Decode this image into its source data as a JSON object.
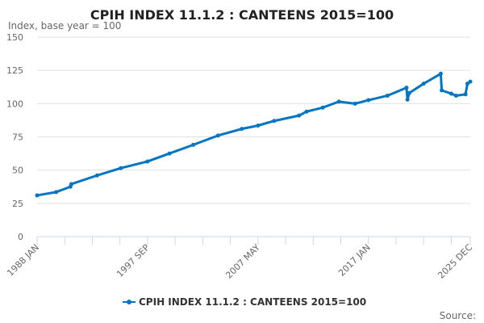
{
  "chart_data": {
    "type": "line",
    "title": "CPIH INDEX 11.1.2 : CANTEENS 2015=100",
    "subtitle": "Index, base year = 100",
    "ylabel": "",
    "xlabel": "",
    "ylim": [
      0,
      150
    ],
    "yticks": [
      0,
      25,
      50,
      75,
      100,
      125,
      150
    ],
    "xlim": [
      "1988 JAN",
      "2025 DEC"
    ],
    "xtick_labels": [
      "1988 JAN",
      "1997 SEP",
      "2007 MAY",
      "2017 JAN",
      "2025 DEC"
    ],
    "grid": true,
    "legend": "bottom",
    "color": "#0075c2",
    "series": [
      {
        "name": "CPIH INDEX 11.1.2 : CANTEENS 2015=100",
        "x": [
          "1988 JAN",
          "1989 SEP",
          "1990 DEC",
          "1991 JAN",
          "1993 APR",
          "1995 MAY",
          "1997 SEP",
          "1999 AUG",
          "2001 SEP",
          "2003 NOV",
          "2005 DEC",
          "2007 MAY",
          "2008 OCT",
          "2010 DEC",
          "2011 AUG",
          "2013 JAN",
          "2014 JUN",
          "2015 NOV",
          "2017 JAN",
          "2018 SEP",
          "2020 MAY",
          "2020 JUN",
          "2020 AUG",
          "2021 NOV",
          "2023 MAY",
          "2023 JUN",
          "2024 APR",
          "2024 SEP",
          "2025 JUL",
          "2025 SEP",
          "2025 DEC"
        ],
        "values": [
          31,
          33.5,
          37.5,
          39.5,
          46,
          51.5,
          56.5,
          62.5,
          69,
          76,
          81,
          83.5,
          87,
          91,
          94,
          97,
          101.5,
          100,
          102.6,
          106,
          112,
          103,
          108,
          115,
          122.5,
          110,
          107.5,
          106,
          107,
          115,
          116.5
        ]
      }
    ],
    "source_label": "Source:"
  }
}
